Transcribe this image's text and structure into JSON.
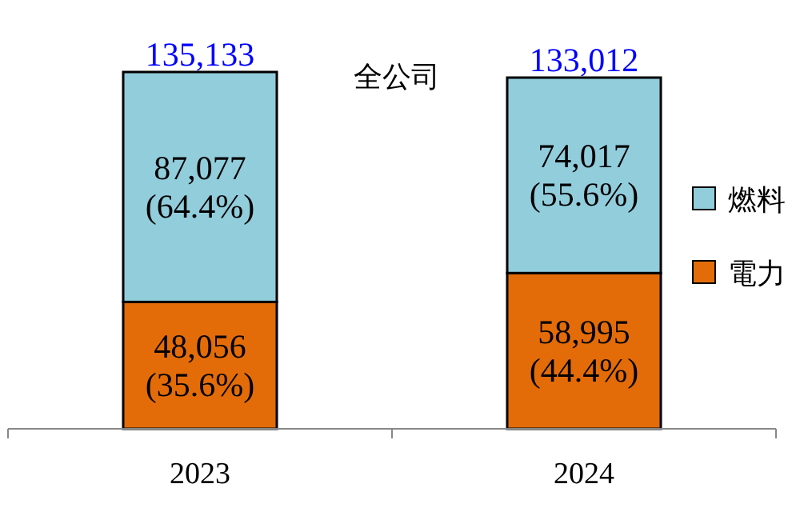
{
  "chart_data": {
    "type": "bar",
    "stacked": true,
    "title": "全公司",
    "categories": [
      "2023",
      "2024"
    ],
    "series": [
      {
        "name": "電力",
        "color": "#e36c09",
        "values": [
          48056,
          58995
        ],
        "value_labels": [
          "48,056\n(35.6%)",
          "58,995\n(44.4%)"
        ]
      },
      {
        "name": "燃料",
        "color": "#92cddc",
        "values": [
          87077,
          74017
        ],
        "value_labels": [
          "87,077\n(64.4%)",
          "74,017\n(55.6%)"
        ]
      }
    ],
    "totals": [
      "135,133",
      "133,012"
    ],
    "legend": "right"
  }
}
